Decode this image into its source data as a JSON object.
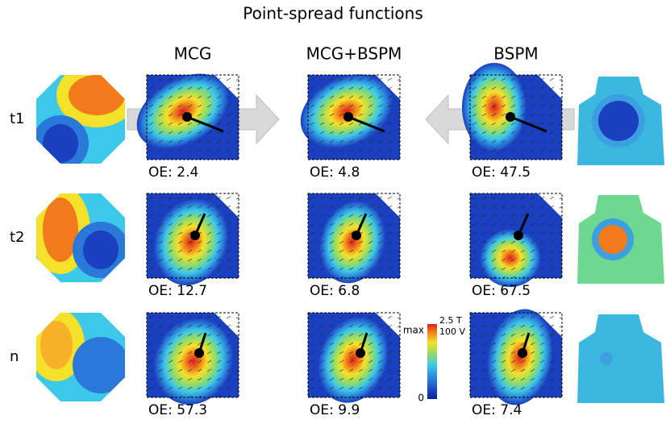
{
  "title": "Point-spread functions",
  "columns": [
    "MCG",
    "MCG+BSPM",
    "BSPM"
  ],
  "rows": [
    {
      "label": "t1",
      "oe": [
        "OE: 2.4",
        "OE: 4.8",
        "OE: 47.5"
      ],
      "oe_colors": [
        "#000000",
        "#000000",
        "#e02020"
      ]
    },
    {
      "label": "t2",
      "oe": [
        "OE: 12.7",
        "OE: 6.8",
        "OE: 67.5"
      ],
      "oe_colors": [
        "#000000",
        "#000000",
        "#e02020"
      ]
    },
    {
      "label": "n",
      "oe": [
        "OE: 57.3",
        "OE: 9.9",
        "OE: 7.4"
      ],
      "oe_colors": [
        "#e02020",
        "#000000",
        "#000000"
      ]
    }
  ],
  "colorbar": {
    "max_label": "max",
    "min_label": "0",
    "units": [
      "2.5 T",
      "100 V"
    ]
  }
}
